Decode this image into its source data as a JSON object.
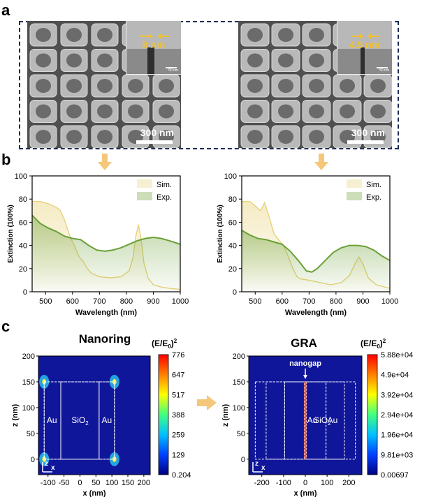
{
  "panel_labels": {
    "a": "a",
    "b": "b",
    "c": "c"
  },
  "sem": {
    "left": {
      "gap_label": "8 nm",
      "inset_scale": "50 nm",
      "scale": "300 nm"
    },
    "right": {
      "gap_label": "4.5 nm",
      "inset_scale": "50 nm",
      "scale": "300 nm"
    }
  },
  "chart_data": [
    {
      "type": "line",
      "id": "nanoring-spectrum",
      "xlabel": "Wavelength (nm)",
      "ylabel": "Extinction (100%)",
      "xlim": [
        450,
        1000
      ],
      "ylim": [
        0,
        100
      ],
      "xticks": [
        500,
        600,
        700,
        800,
        900,
        1000
      ],
      "yticks": [
        0,
        20,
        40,
        60,
        80,
        100
      ],
      "legend": [
        "Sim.",
        "Exp."
      ],
      "legend_position": "top-right",
      "series": [
        {
          "name": "Sim.",
          "color": "#e8d27a",
          "x": [
            450,
            480,
            510,
            530,
            545,
            555,
            570,
            590,
            610,
            625,
            640,
            655,
            670,
            700,
            740,
            780,
            810,
            825,
            835,
            845,
            855,
            865,
            880,
            900,
            930,
            960,
            1000
          ],
          "y": [
            78,
            78,
            76,
            74,
            72,
            70,
            62,
            48,
            38,
            30,
            26,
            20,
            16,
            13,
            12,
            13,
            18,
            30,
            48,
            58,
            45,
            25,
            12,
            6,
            4,
            3,
            2
          ]
        },
        {
          "name": "Exp.",
          "color": "#6aa035",
          "x": [
            450,
            480,
            510,
            540,
            570,
            600,
            630,
            660,
            690,
            720,
            750,
            780,
            810,
            840,
            870,
            900,
            930,
            960,
            1000
          ],
          "y": [
            66,
            59,
            55,
            52,
            48,
            46,
            45,
            40,
            36,
            35,
            36,
            38,
            41,
            44,
            46,
            47,
            46,
            44,
            41
          ]
        }
      ]
    },
    {
      "type": "line",
      "id": "gra-spectrum",
      "xlabel": "Wavelength (nm)",
      "ylabel": "Extinction (100%)",
      "xlim": [
        450,
        1000
      ],
      "ylim": [
        0,
        100
      ],
      "xticks": [
        500,
        600,
        700,
        800,
        900,
        1000
      ],
      "yticks": [
        0,
        20,
        40,
        60,
        80,
        100
      ],
      "legend": [
        "Sim.",
        "Exp."
      ],
      "legend_position": "top-right",
      "series": [
        {
          "name": "Sim.",
          "color": "#e8d27a",
          "x": [
            450,
            480,
            505,
            520,
            535,
            550,
            570,
            590,
            605,
            620,
            640,
            655,
            670,
            700,
            740,
            780,
            820,
            850,
            870,
            885,
            900,
            920,
            950,
            1000
          ],
          "y": [
            78,
            78,
            73,
            70,
            77,
            66,
            50,
            44,
            40,
            32,
            20,
            13,
            11,
            10,
            8,
            6,
            8,
            14,
            24,
            30,
            24,
            12,
            6,
            3
          ]
        },
        {
          "name": "Exp.",
          "color": "#6aa035",
          "x": [
            450,
            480,
            510,
            540,
            570,
            600,
            630,
            660,
            690,
            710,
            730,
            760,
            790,
            820,
            850,
            880,
            910,
            940,
            970,
            1000
          ],
          "y": [
            53,
            49,
            46,
            45,
            43,
            41,
            35,
            27,
            18,
            17,
            20,
            27,
            34,
            38,
            40,
            40,
            39,
            36,
            31,
            27
          ]
        }
      ]
    },
    {
      "type": "heatmap",
      "id": "nanoring-field",
      "title": "Nanoring",
      "colorbar_label": "(E/E0)2",
      "colorbar_ticks": [
        "776",
        "647",
        "517",
        "388",
        "259",
        "129",
        "0.204"
      ],
      "xlabel": "x (nm)",
      "ylabel": "z (nm)",
      "xlim": [
        -130,
        220
      ],
      "ylim": [
        -30,
        200
      ],
      "xticks": [
        -100,
        -50,
        0,
        50,
        100,
        150,
        200
      ],
      "yticks": [
        0,
        50,
        100,
        150,
        200
      ],
      "regions": [
        "Au",
        "SiO2",
        "Au"
      ]
    },
    {
      "type": "heatmap",
      "id": "gra-field",
      "title": "GRA",
      "colorbar_label": "(E/E0)2",
      "colorbar_ticks": [
        "5.88e+04",
        "4.9e+04",
        "3.92e+04",
        "2.94e+04",
        "1.96e+04",
        "9.81e+03",
        "0.00697"
      ],
      "xlabel": "x (nm)",
      "ylabel": "z (nm)",
      "xlim": [
        -260,
        260
      ],
      "ylim": [
        -30,
        200
      ],
      "xticks": [
        -200,
        -100,
        0,
        100,
        200
      ],
      "yticks": [
        0,
        50,
        100,
        150,
        200
      ],
      "regions": [
        "Au",
        "SiO2",
        "Au"
      ],
      "annotation": "nanogap"
    }
  ],
  "axis_labels": {
    "x": "x",
    "z": "z"
  },
  "colors": {
    "frame": "#1f2d55",
    "arrow": "#f5c77a",
    "field_bg": "#10169a"
  }
}
